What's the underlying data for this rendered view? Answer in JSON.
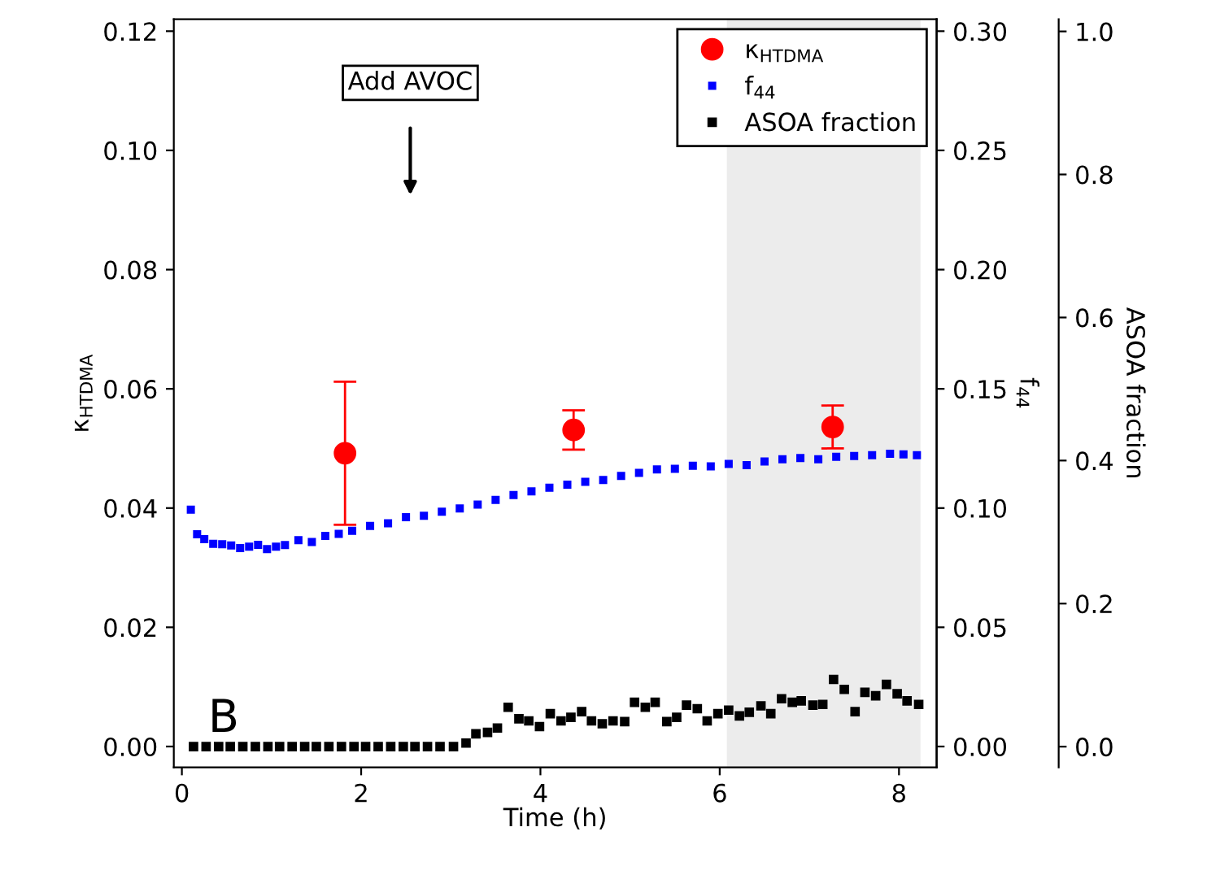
{
  "chart_data": {
    "type": "scatter",
    "xlabel": "Time (h)",
    "ylabel": "κ$_{HTDMA}$",
    "y2label": "f$_{44}$",
    "y3label": "ASOA fraction",
    "xlim": [
      -0.09,
      8.42
    ],
    "xticks": [
      0,
      2,
      4,
      6,
      8
    ],
    "ylim": [
      -0.0035,
      0.122
    ],
    "yticks": [
      {
        "value": 0,
        "label": "0.00"
      },
      {
        "value": 0.02,
        "label": "0.02"
      },
      {
        "value": 0.04,
        "label": "0.04"
      },
      {
        "value": 0.06,
        "label": "0.06"
      },
      {
        "value": 0.08,
        "label": "0.08"
      },
      {
        "value": 0.1,
        "label": "0.10"
      },
      {
        "value": 0.12,
        "label": "0.12"
      }
    ],
    "y2lim": [
      -0.00875,
      0.305
    ],
    "y2ticks": [
      {
        "value": 0,
        "label": "0.00"
      },
      {
        "value": 0.05,
        "label": "0.05"
      },
      {
        "value": 0.1,
        "label": "0.10"
      },
      {
        "value": 0.15,
        "label": "0.15"
      },
      {
        "value": 0.2,
        "label": "0.20"
      },
      {
        "value": 0.25,
        "label": "0.25"
      },
      {
        "value": 0.3,
        "label": "0.30"
      }
    ],
    "y3lim": [
      -0.029,
      1.017
    ],
    "y3ticks": [
      {
        "value": 0,
        "label": "0.0"
      },
      {
        "value": 0.2,
        "label": "0.2"
      },
      {
        "value": 0.4,
        "label": "0.4"
      },
      {
        "value": 0.6,
        "label": "0.6"
      },
      {
        "value": 0.8,
        "label": "0.8"
      },
      {
        "value": 1.0,
        "label": "1.0"
      }
    ],
    "grid": false,
    "legend": "top right",
    "bands": [
      {
        "axis": "x",
        "from": 6.08,
        "to": 8.24,
        "color": "#ececec"
      }
    ],
    "annotations": [
      "Add AVOC",
      "B"
    ],
    "series": [
      {
        "name": "κ$_{HTDMA}$",
        "color": "#ff0000",
        "marker": "circle",
        "axis": "y",
        "x": [
          1.82,
          4.37,
          7.26
        ],
        "values": [
          0.0492,
          0.0531,
          0.0536
        ],
        "errors": [
          0.012,
          0.0033,
          0.0036
        ]
      },
      {
        "name": "f$_{44}$",
        "color": "#0000ff",
        "marker": "square",
        "axis": "y2",
        "x": [
          0.1,
          0.17,
          0.25,
          0.35,
          0.45,
          0.55,
          0.65,
          0.75,
          0.85,
          0.95,
          1.05,
          1.15,
          1.3,
          1.45,
          1.6,
          1.75,
          1.9,
          2.1,
          2.3,
          2.5,
          2.7,
          2.9,
          3.1,
          3.3,
          3.5,
          3.7,
          3.9,
          4.1,
          4.3,
          4.5,
          4.7,
          4.9,
          5.1,
          5.3,
          5.5,
          5.7,
          5.9,
          6.1,
          6.3,
          6.5,
          6.7,
          6.9,
          7.1,
          7.3,
          7.5,
          7.7,
          7.9,
          8.05,
          8.2
        ],
        "values": [
          0.0993,
          0.089,
          0.087,
          0.085,
          0.0848,
          0.0843,
          0.0832,
          0.0838,
          0.0846,
          0.0828,
          0.0838,
          0.0845,
          0.0865,
          0.0858,
          0.0883,
          0.0892,
          0.0905,
          0.0925,
          0.0936,
          0.0962,
          0.0968,
          0.0985,
          0.0998,
          0.1015,
          0.1034,
          0.1055,
          0.107,
          0.1085,
          0.1098,
          0.111,
          0.1118,
          0.1135,
          0.1148,
          0.1162,
          0.1165,
          0.1177,
          0.1175,
          0.1185,
          0.118,
          0.1195,
          0.1205,
          0.121,
          0.1205,
          0.1215,
          0.1218,
          0.1222,
          0.1228,
          0.1225,
          0.1222
        ]
      },
      {
        "name": "ASOA fraction",
        "color": "#000000",
        "marker": "square",
        "axis": "y3",
        "x": [
          0.13,
          0.27,
          0.41,
          0.54,
          0.68,
          0.82,
          0.96,
          1.09,
          1.23,
          1.37,
          1.5,
          1.64,
          1.78,
          1.92,
          2.05,
          2.19,
          2.33,
          2.47,
          2.6,
          2.74,
          2.88,
          3.03,
          3.17,
          3.28,
          3.41,
          3.52,
          3.64,
          3.76,
          3.87,
          3.99,
          4.11,
          4.23,
          4.34,
          4.46,
          4.57,
          4.69,
          4.81,
          4.94,
          5.05,
          5.17,
          5.28,
          5.41,
          5.52,
          5.63,
          5.75,
          5.86,
          5.98,
          6.1,
          6.22,
          6.33,
          6.46,
          6.57,
          6.69,
          6.81,
          6.91,
          7.04,
          7.15,
          7.27,
          7.39,
          7.51,
          7.62,
          7.74,
          7.86,
          7.98,
          8.09,
          8.22
        ],
        "values": [
          0,
          0,
          0,
          0,
          0,
          0,
          0,
          0,
          0,
          0,
          0,
          0,
          0,
          0,
          0,
          0,
          0,
          0,
          0,
          0,
          0,
          0,
          0.005,
          0.018,
          0.02,
          0.026,
          0.055,
          0.039,
          0.036,
          0.028,
          0.046,
          0.036,
          0.041,
          0.049,
          0.036,
          0.032,
          0.036,
          0.035,
          0.062,
          0.055,
          0.062,
          0.035,
          0.041,
          0.058,
          0.053,
          0.036,
          0.046,
          0.051,
          0.043,
          0.048,
          0.057,
          0.046,
          0.067,
          0.062,
          0.064,
          0.058,
          0.059,
          0.094,
          0.08,
          0.049,
          0.076,
          0.071,
          0.087,
          0.074,
          0.064,
          0.059
        ]
      }
    ]
  }
}
